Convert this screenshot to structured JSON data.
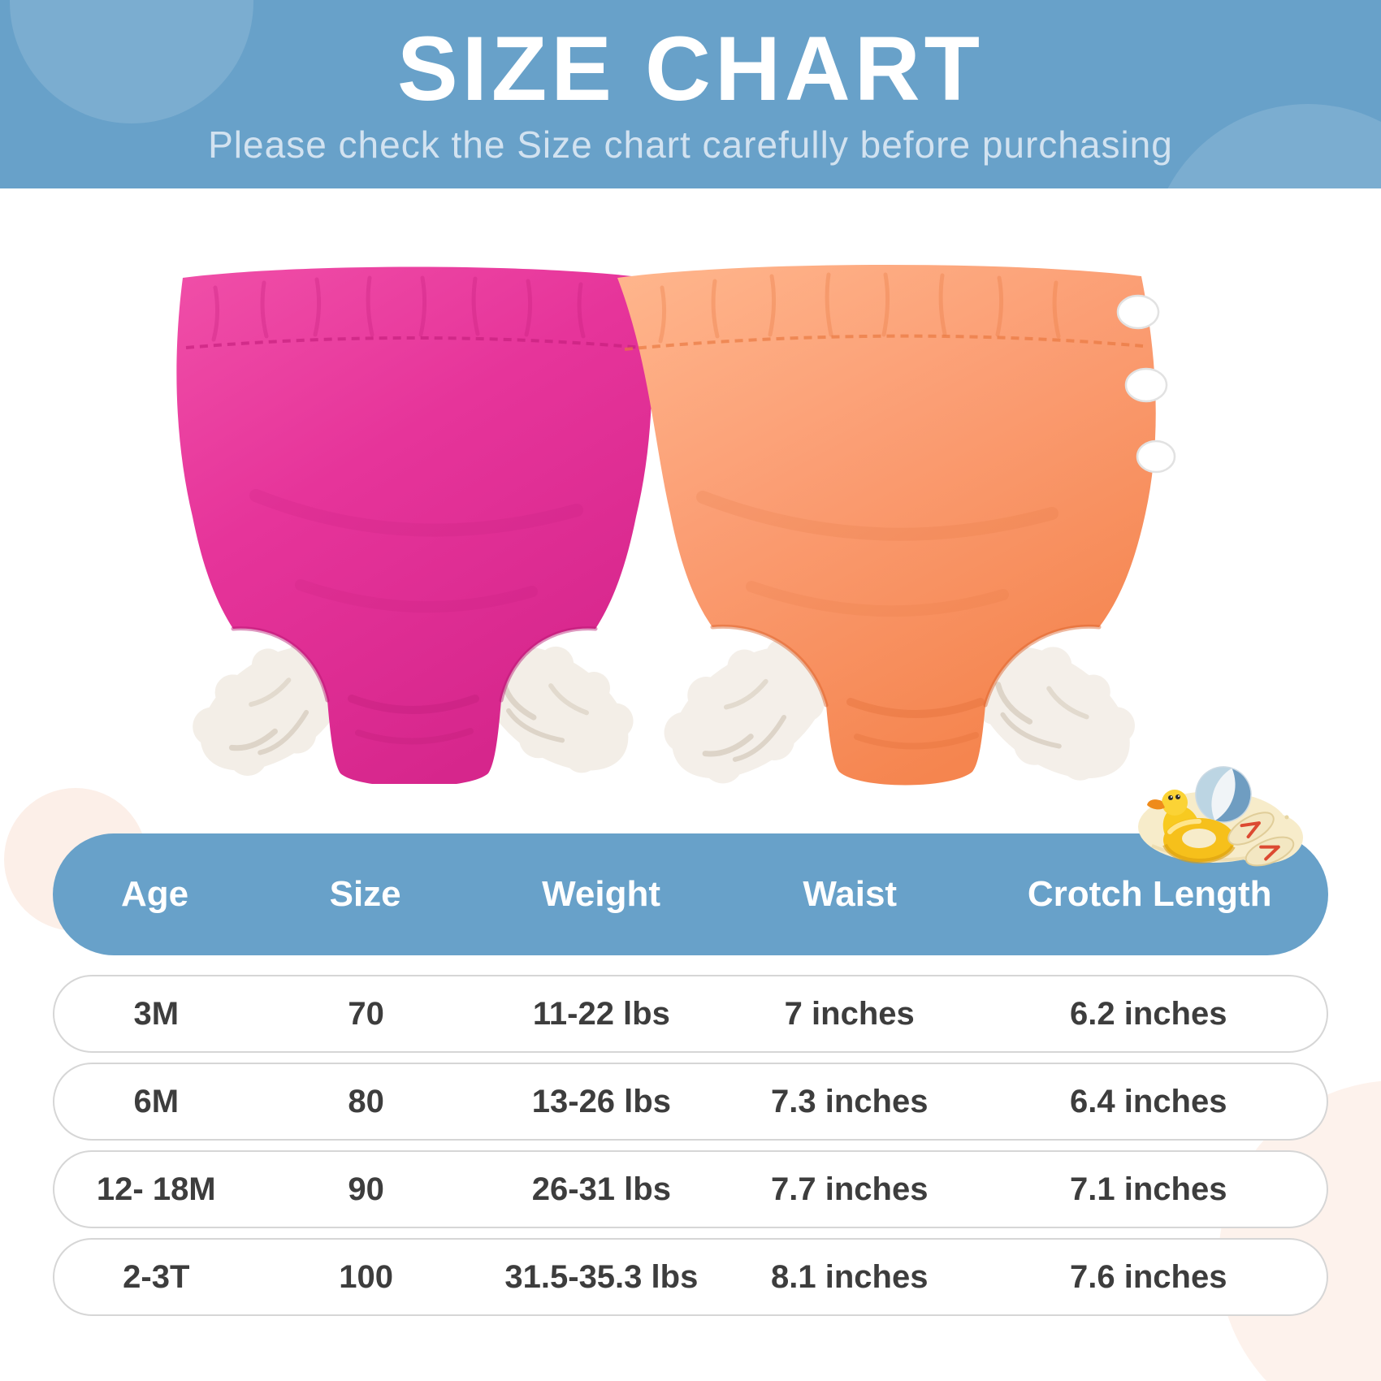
{
  "banner": {
    "title": "SIZE CHART",
    "subtitle": "Please check the Size chart carefully before purchasing"
  },
  "product": {
    "items": [
      {
        "name": "pink swim diaper",
        "color": "#e6349a"
      },
      {
        "name": "orange swim diaper",
        "color": "#fb9e74"
      }
    ]
  },
  "decoration": {
    "items": [
      "duck pool float",
      "beach ball",
      "flip flops",
      "sand patch"
    ]
  },
  "table": {
    "headers": [
      "Age",
      "Size",
      "Weight",
      "Waist",
      "Crotch Length"
    ],
    "rows": [
      [
        "3M",
        "70",
        "11-22 lbs",
        "7 inches",
        "6.2 inches"
      ],
      [
        "6M",
        "80",
        "13-26 lbs",
        "7.3 inches",
        "6.4 inches"
      ],
      [
        "12- 18M",
        "90",
        "26-31 lbs",
        "7.7 inches",
        "7.1 inches"
      ],
      [
        "2-3T",
        "100",
        "31.5-35.3 lbs",
        "8.1 inches",
        "7.6 inches"
      ]
    ]
  },
  "colors": {
    "banner_blue": "#68a1c9",
    "header_blue": "#68a1c9",
    "subtitle_color": "#d2e2f0",
    "row_text": "#3d3d3d",
    "row_border": "#d6d6d6",
    "pale_pink": "#fcefe8",
    "pale_peach": "#fdf2ec"
  }
}
